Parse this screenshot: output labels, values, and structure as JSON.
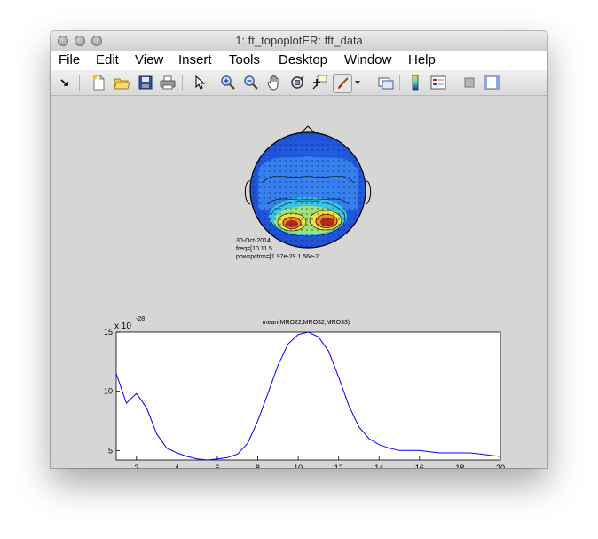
{
  "window": {
    "title": "1: ft_topoplotER: fft_data"
  },
  "menu": {
    "items": [
      "File",
      "Edit",
      "View",
      "Insert",
      "Tools",
      "Desktop",
      "Window",
      "Help"
    ]
  },
  "toolbar": {
    "icons": [
      "dock-arrow-icon",
      "new-figure-icon",
      "open-file-icon",
      "save-icon",
      "print-icon",
      "pointer-icon",
      "zoom-in-icon",
      "zoom-out-icon",
      "pan-hand-icon",
      "rotate-3d-icon",
      "data-cursor-icon",
      "brush-icon",
      "brush-dropdown-icon",
      "link-plot-icon",
      "colorbar-icon",
      "legend-icon",
      "hide-plot-tools-icon",
      "show-plot-tools-icon"
    ]
  },
  "topoplot": {
    "info_lines": [
      "30-Oct-2014",
      "freq=[10 11.5",
      "powspctrm=[1.97e-29 1.56e-2"
    ]
  },
  "chart_data": {
    "type": "line",
    "title": "mean(MRO22,MRO32,MRO33)",
    "xlabel": "",
    "ylabel": "",
    "y_multiplier": "x 10",
    "y_exponent": "-28",
    "xlim": [
      1,
      20
    ],
    "ylim": [
      4.2,
      15
    ],
    "x_ticks": [
      2,
      4,
      6,
      8,
      10,
      12,
      14,
      16,
      18,
      20
    ],
    "y_ticks": [
      5,
      10,
      15
    ],
    "grid": false,
    "series": [
      {
        "color": "#0000ff",
        "x": [
          1,
          1.5,
          2,
          2.5,
          3,
          3.5,
          4,
          4.5,
          5,
          5.5,
          6,
          6.5,
          7,
          7.5,
          8,
          8.5,
          9,
          9.5,
          10,
          10.5,
          11,
          11.5,
          12,
          12.5,
          13,
          13.5,
          14,
          14.5,
          15,
          15.5,
          16,
          16.5,
          17,
          17.5,
          18,
          18.5,
          19,
          19.5,
          20
        ],
        "y": [
          11.5,
          9.0,
          9.8,
          8.6,
          6.4,
          5.2,
          4.8,
          4.5,
          4.3,
          4.2,
          4.3,
          4.4,
          4.7,
          5.6,
          7.5,
          9.8,
          12.2,
          14.0,
          14.8,
          15.0,
          14.6,
          13.4,
          11.2,
          8.8,
          7.0,
          6.0,
          5.5,
          5.2,
          5.0,
          5.0,
          5.0,
          4.9,
          4.8,
          4.8,
          4.8,
          4.8,
          4.7,
          4.6,
          4.5
        ]
      }
    ]
  }
}
